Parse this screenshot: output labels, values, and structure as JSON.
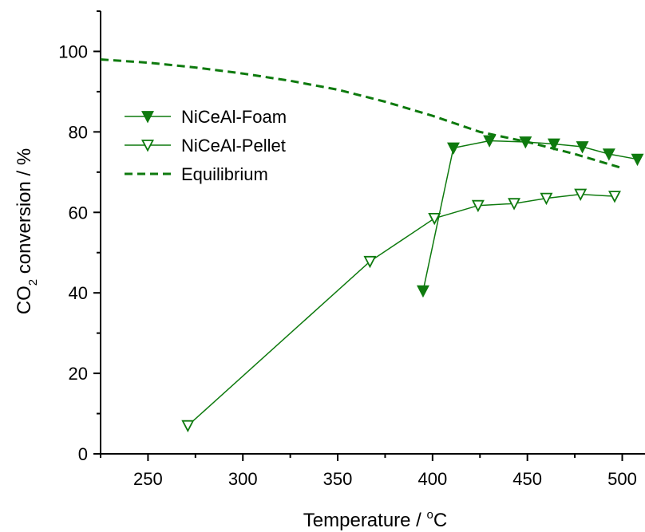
{
  "chart_data": {
    "type": "line",
    "xlabel": "Temperature / °C",
    "xlabel_parts": {
      "main": "Temperature / ",
      "sup": "o",
      "tail": "C"
    },
    "ylabel": "CO2 conversion / %",
    "ylabel_parts": {
      "main": "CO",
      "sub": "2",
      "tail": " conversion / %"
    },
    "xlim": [
      225,
      512
    ],
    "ylim": [
      0,
      110
    ],
    "xticks": [
      250,
      300,
      350,
      400,
      450,
      500
    ],
    "yticks": [
      0,
      20,
      40,
      60,
      80,
      100
    ],
    "legend_position": "upper-left",
    "grid": false,
    "series": [
      {
        "name": "NiCeAl-Foam",
        "marker": "filled-down-triangle",
        "line": "solid",
        "color": "#0e7a0e",
        "x": [
          395,
          411,
          430,
          449,
          464,
          479,
          493,
          508
        ],
        "y": [
          40.5,
          76.0,
          77.8,
          77.5,
          77.0,
          76.3,
          74.5,
          73.2
        ]
      },
      {
        "name": "NiCeAl-Pellet",
        "marker": "open-down-triangle",
        "line": "solid",
        "color": "#0e7a0e",
        "x": [
          271,
          367,
          401,
          424,
          443,
          460,
          478,
          496
        ],
        "y": [
          7.0,
          47.8,
          58.5,
          61.7,
          62.2,
          63.5,
          64.5,
          64.0
        ]
      },
      {
        "name": "Equilibrium",
        "marker": "none",
        "line": "dashed",
        "color": "#0e7a0e",
        "x": [
          225,
          250,
          275,
          300,
          325,
          350,
          375,
          400,
          425,
          450,
          475,
          500
        ],
        "y": [
          98.0,
          97.2,
          96.0,
          94.5,
          92.7,
          90.5,
          87.5,
          84.0,
          80.0,
          77.5,
          74.5,
          71.0
        ]
      }
    ]
  }
}
